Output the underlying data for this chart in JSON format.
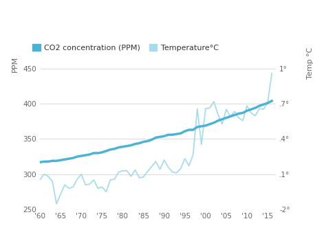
{
  "legend_co2_label": "CO2 concentration (PPM)",
  "legend_temp_label": "Temperature°C",
  "left_ylabel": "PPM",
  "right_ylabel": "Temp °C",
  "co2_color": "#4db3d4",
  "temp_color": "#a8dce9",
  "background_color": "#ffffff",
  "grid_color": "#dddddd",
  "text_color": "#666666",
  "xlim": [
    1960,
    2017
  ],
  "ylim_ppm": [
    250,
    450
  ],
  "xticks": [
    1960,
    1965,
    1970,
    1975,
    1980,
    1985,
    1990,
    1995,
    2000,
    2005,
    2010,
    2015
  ],
  "xtick_labels": [
    "'60",
    "'65",
    "'70",
    "'75",
    "'80",
    "'85",
    "'90",
    "'95",
    "'00",
    "'05",
    "'10",
    "'15"
  ],
  "yticks_ppm": [
    250,
    300,
    350,
    400,
    450
  ],
  "ytick_labels_ppm": [
    "250",
    "300",
    "350",
    "400",
    "450"
  ],
  "ytick_labels_temp": [
    "-2°",
    ".1°",
    ".4°",
    ".7°",
    "1°"
  ],
  "co2_years": [
    1960,
    1961,
    1962,
    1963,
    1964,
    1965,
    1966,
    1967,
    1968,
    1969,
    1970,
    1971,
    1972,
    1973,
    1974,
    1975,
    1976,
    1977,
    1978,
    1979,
    1980,
    1981,
    1982,
    1983,
    1984,
    1985,
    1986,
    1987,
    1988,
    1989,
    1990,
    1991,
    1992,
    1993,
    1994,
    1995,
    1996,
    1997,
    1998,
    1999,
    2000,
    2001,
    2002,
    2003,
    2004,
    2005,
    2006,
    2007,
    2008,
    2009,
    2010,
    2011,
    2012,
    2013,
    2014,
    2015,
    2016
  ],
  "co2_values": [
    317,
    318,
    318,
    319,
    319,
    320,
    321,
    322,
    323,
    325,
    326,
    327,
    328,
    330,
    330,
    331,
    333,
    335,
    336,
    338,
    339,
    340,
    341,
    343,
    344,
    346,
    347,
    349,
    352,
    353,
    354,
    356,
    356,
    357,
    358,
    361,
    363,
    363,
    367,
    368,
    369,
    371,
    373,
    376,
    378,
    380,
    382,
    384,
    386,
    387,
    390,
    392,
    394,
    397,
    399,
    401,
    404
  ],
  "temp_years": [
    1960,
    1961,
    1962,
    1963,
    1964,
    1965,
    1966,
    1967,
    1968,
    1969,
    1970,
    1971,
    1972,
    1973,
    1974,
    1975,
    1976,
    1977,
    1978,
    1979,
    1980,
    1981,
    1982,
    1983,
    1984,
    1985,
    1986,
    1987,
    1988,
    1989,
    1990,
    1991,
    1992,
    1993,
    1994,
    1995,
    1996,
    1997,
    1998,
    1999,
    2000,
    2001,
    2002,
    2003,
    2004,
    2005,
    2006,
    2007,
    2008,
    2009,
    2010,
    2011,
    2012,
    2013,
    2014,
    2015,
    2016
  ],
  "temp_values": [
    292,
    300,
    297,
    290,
    258,
    272,
    285,
    280,
    282,
    293,
    300,
    285,
    286,
    292,
    280,
    282,
    275,
    292,
    293,
    303,
    305,
    305,
    297,
    306,
    295,
    296,
    304,
    311,
    318,
    307,
    320,
    310,
    303,
    302,
    308,
    322,
    312,
    328,
    393,
    342,
    393,
    394,
    403,
    385,
    371,
    392,
    382,
    389,
    380,
    376,
    397,
    387,
    383,
    393,
    392,
    402,
    443
  ]
}
